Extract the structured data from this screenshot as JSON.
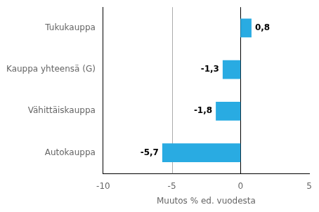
{
  "chart_data": {
    "type": "bar",
    "orientation": "horizontal",
    "categories": [
      "Autokauppa",
      "Vähittäiskauppa",
      "Kauppa yhteensä (G)",
      "Tukukauppa"
    ],
    "values": [
      -5.7,
      -1.8,
      -1.3,
      0.8
    ],
    "value_labels": [
      "-5,7",
      "-1,8",
      "-1,3",
      "0,8"
    ],
    "data_labels": true,
    "color": "#29ABE2",
    "xlabel": "Muutos % ed. vuodesta",
    "xlim": [
      -10,
      5
    ],
    "xticks": [
      -10,
      -5,
      0,
      5
    ],
    "vlines": [
      {
        "x": -5,
        "color": "#aaaaaa"
      },
      {
        "x": 0,
        "color": "#000000"
      }
    ],
    "grid": false
  }
}
